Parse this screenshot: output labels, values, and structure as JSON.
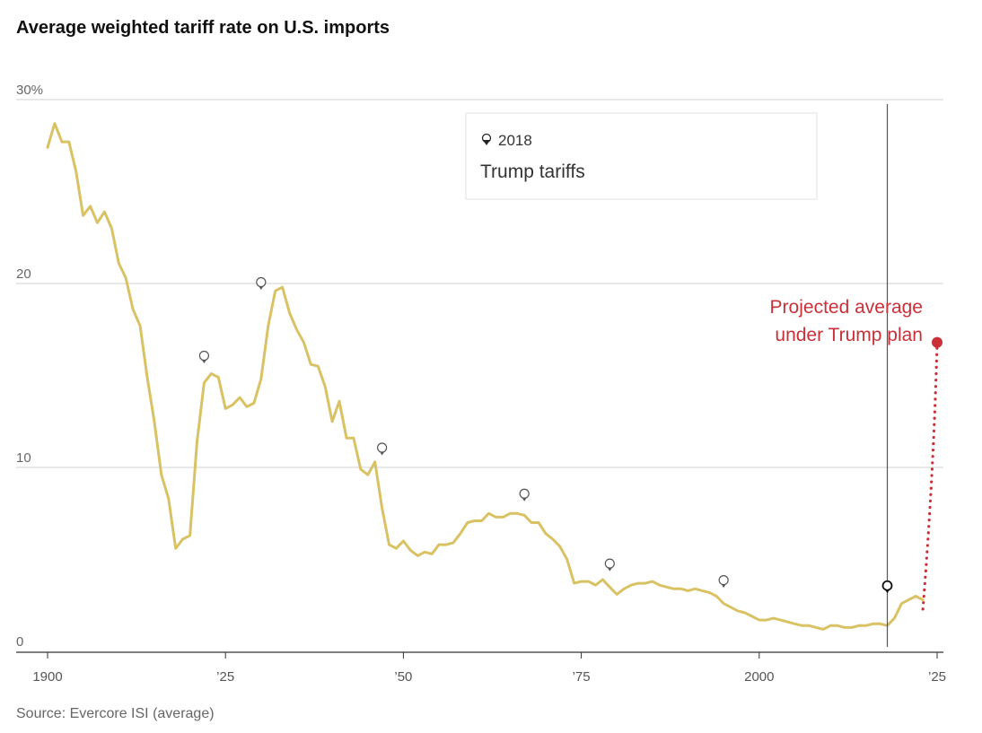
{
  "chart_data": {
    "type": "line",
    "title": "Average weighted tariff rate on U.S. imports",
    "source": "Source: Evercore ISI (average)",
    "xlim": [
      1900,
      2025
    ],
    "ylim": [
      0,
      30
    ],
    "y_ticks": [
      {
        "value": 30,
        "label": "30%"
      },
      {
        "value": 20,
        "label": "20"
      },
      {
        "value": 10,
        "label": "10"
      },
      {
        "value": 0,
        "label": "0"
      }
    ],
    "x_ticks": [
      {
        "value": 1900,
        "label": "1900"
      },
      {
        "value": 1925,
        "label": "’25"
      },
      {
        "value": 1950,
        "label": "’50"
      },
      {
        "value": 1975,
        "label": "’75"
      },
      {
        "value": 2000,
        "label": "2000"
      },
      {
        "value": 2025,
        "label": "’25"
      }
    ],
    "grid": true,
    "series": [
      {
        "name": "",
        "color": "#d9c264",
        "x": [
          1900,
          1901,
          1902,
          1903,
          1904,
          1905,
          1906,
          1907,
          1908,
          1909,
          1910,
          1911,
          1912,
          1913,
          1914,
          1915,
          1916,
          1917,
          1918,
          1919,
          1920,
          1921,
          1922,
          1923,
          1924,
          1925,
          1926,
          1927,
          1928,
          1929,
          1930,
          1931,
          1932,
          1933,
          1934,
          1935,
          1936,
          1937,
          1938,
          1939,
          1940,
          1941,
          1942,
          1943,
          1944,
          1945,
          1946,
          1947,
          1948,
          1949,
          1950,
          1951,
          1952,
          1953,
          1954,
          1955,
          1956,
          1957,
          1958,
          1959,
          1960,
          1961,
          1962,
          1963,
          1964,
          1965,
          1966,
          1967,
          1968,
          1969,
          1970,
          1971,
          1972,
          1973,
          1974,
          1975,
          1976,
          1977,
          1978,
          1979,
          1980,
          1981,
          1982,
          1983,
          1984,
          1985,
          1986,
          1987,
          1988,
          1989,
          1990,
          1991,
          1992,
          1993,
          1994,
          1995,
          1996,
          1997,
          1998,
          1999,
          2000,
          2001,
          2002,
          2003,
          2004,
          2005,
          2006,
          2007,
          2008,
          2009,
          2010,
          2011,
          2012,
          2013,
          2014,
          2015,
          2016,
          2017,
          2018,
          2019,
          2020,
          2021,
          2022,
          2023
        ],
        "y": [
          27.4,
          28.7,
          27.7,
          27.7,
          26.1,
          23.7,
          24.2,
          23.3,
          23.9,
          23.0,
          21.1,
          20.3,
          18.6,
          17.7,
          14.9,
          12.5,
          9.6,
          8.3,
          5.6,
          6.1,
          6.3,
          11.4,
          14.6,
          15.1,
          14.9,
          13.2,
          13.4,
          13.8,
          13.3,
          13.5,
          14.8,
          17.7,
          19.6,
          19.8,
          18.4,
          17.5,
          16.8,
          15.6,
          15.5,
          14.4,
          12.5,
          13.6,
          11.6,
          11.6,
          9.9,
          9.6,
          10.3,
          7.8,
          5.8,
          5.6,
          6.0,
          5.5,
          5.2,
          5.4,
          5.3,
          5.8,
          5.8,
          5.9,
          6.4,
          7.0,
          7.1,
          7.1,
          7.5,
          7.3,
          7.3,
          7.5,
          7.5,
          7.4,
          7.0,
          7.0,
          6.4,
          6.1,
          5.7,
          5.0,
          3.7,
          3.8,
          3.8,
          3.6,
          3.9,
          3.5,
          3.1,
          3.4,
          3.6,
          3.7,
          3.7,
          3.8,
          3.6,
          3.5,
          3.4,
          3.4,
          3.3,
          3.4,
          3.3,
          3.2,
          3.0,
          2.6,
          2.4,
          2.2,
          2.1,
          1.9,
          1.7,
          1.7,
          1.8,
          1.7,
          1.6,
          1.5,
          1.4,
          1.4,
          1.3,
          1.2,
          1.4,
          1.4,
          1.3,
          1.3,
          1.4,
          1.4,
          1.5,
          1.5,
          1.4,
          1.8,
          2.6,
          2.8,
          3.0,
          2.8
        ]
      }
    ],
    "projection": {
      "label_line1": "Projected average",
      "label_line2": "under Trump plan",
      "color": "#c93038",
      "from": {
        "x": 2023,
        "y": 2.3
      },
      "to": {
        "x": 2025,
        "y": 16.8
      }
    },
    "markers": [
      {
        "x": 1922,
        "y": 16.0
      },
      {
        "x": 1930,
        "y": 20.0
      },
      {
        "x": 1947,
        "y": 11.0
      },
      {
        "x": 1967,
        "y": 8.5
      },
      {
        "x": 1979,
        "y": 4.7
      },
      {
        "x": 1995,
        "y": 3.8
      },
      {
        "x": 2018,
        "y": 3.5,
        "active": true
      }
    ],
    "highlight": {
      "x": 2018,
      "year": "2018",
      "label": "Trump tariffs"
    }
  }
}
